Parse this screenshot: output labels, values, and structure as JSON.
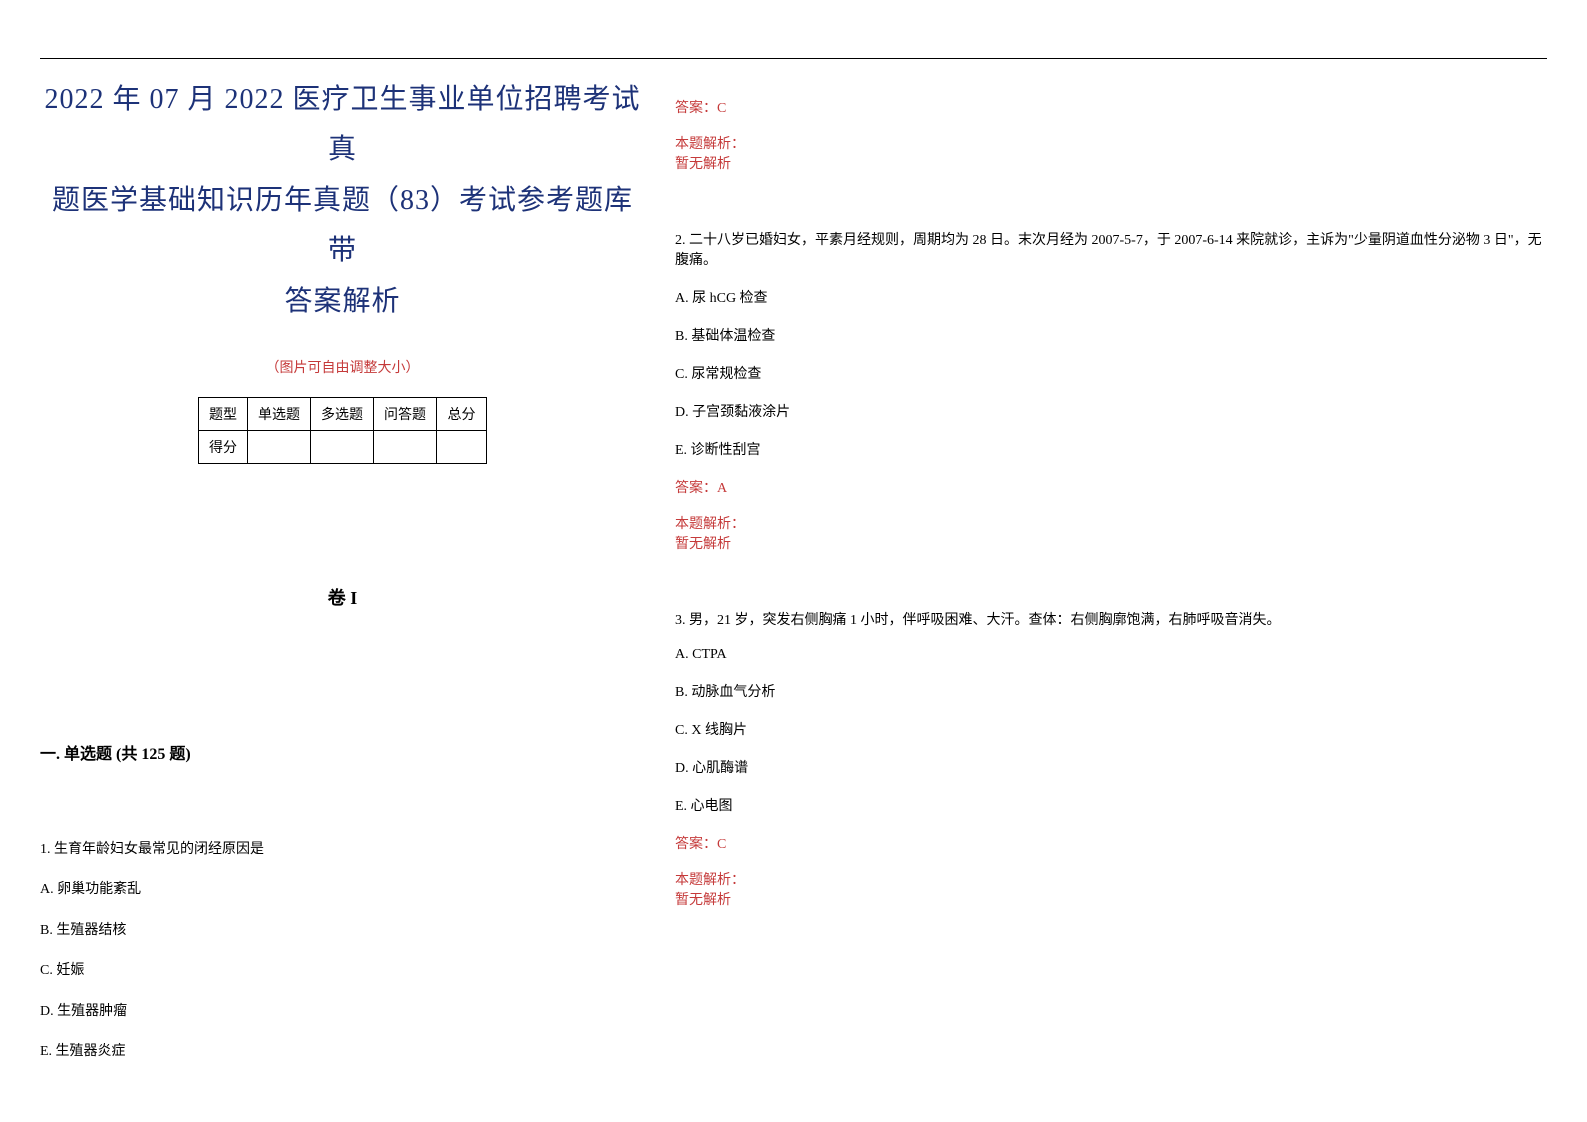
{
  "document": {
    "main_title_line1": "2022 年 07 月 2022 医疗卫生事业单位招聘考试真",
    "main_title_line2": "题医学基础知识历年真题（83）考试参考题库带",
    "main_title_line3": "答案解析",
    "subtitle": "（图片可自由调整大小）",
    "volume_label": "卷 I",
    "section_title": "一. 单选题 (共 125 题)"
  },
  "score_table": {
    "header": [
      "题型",
      "单选题",
      "多选题",
      "问答题",
      "总分"
    ],
    "row_label": "得分"
  },
  "question1": {
    "text": "1. 生育年龄妇女最常见的闭经原因是",
    "options": {
      "A": "A. 卵巢功能紊乱",
      "B": "B. 生殖器结核",
      "C": "C. 妊娠",
      "D": "D. 生殖器肿瘤",
      "E": "E. 生殖器炎症"
    }
  },
  "answer1": {
    "label": "答案：C",
    "analysis_label": "本题解析：",
    "analysis_text": "暂无解析"
  },
  "question2": {
    "text": "2. 二十八岁已婚妇女，平素月经规则，周期均为 28 日。末次月经为 2007-5-7，于 2007-6-14 来院就诊，主诉为\"少量阴道血性分泌物 3 日\"，无腹痛。",
    "options": {
      "A": "A. 尿 hCG 检查",
      "B": "B. 基础体温检查",
      "C": "C. 尿常规检查",
      "D": "D. 子宫颈黏液涂片",
      "E": "E. 诊断性刮宫"
    },
    "answer_label": "答案：A",
    "analysis_label": "本题解析：",
    "analysis_text": "暂无解析"
  },
  "question3": {
    "text": "3. 男，21 岁，突发右侧胸痛 1 小时，伴呼吸困难、大汗。查体：右侧胸廓饱满，右肺呼吸音消失。",
    "options": {
      "A": "A. CTPA",
      "B": "B. 动脉血气分析",
      "C": "C. X 线胸片",
      "D": "D. 心肌酶谱",
      "E": "E. 心电图"
    },
    "answer_label": "答案：C",
    "analysis_label": "本题解析：",
    "analysis_text": "暂无解析"
  },
  "colors": {
    "title_color": "#1d3278",
    "accent_color": "#c53a3a",
    "text_color": "#000000",
    "background": "#ffffff"
  },
  "typography": {
    "title_fontsize": 28,
    "body_fontsize": 14,
    "section_fontsize": 16,
    "volume_fontsize": 18
  }
}
